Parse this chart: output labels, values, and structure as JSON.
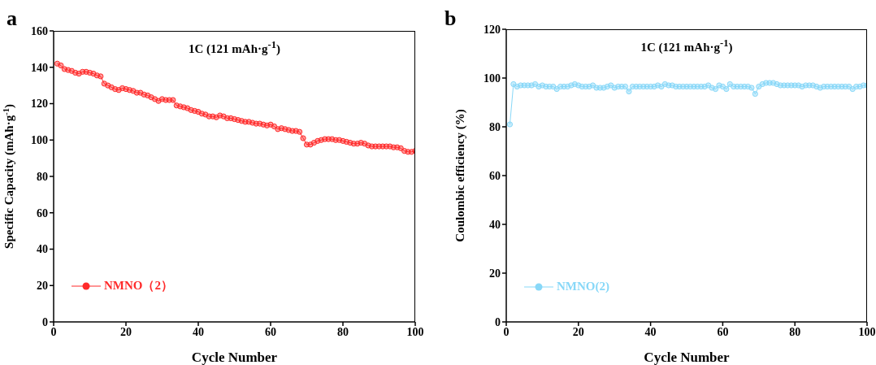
{
  "chart_data": [
    {
      "type": "line",
      "title": "1C (121 mAh·g$^{-1}$)",
      "xlabel": "Cycle Number",
      "ylabel": "Specific Capacity (mAh·g$^{-1}$)",
      "annotations": [
        "a"
      ],
      "xlim": [
        0,
        100
      ],
      "xticks": [
        0,
        20,
        40,
        60,
        80,
        100
      ],
      "ylim": [
        0,
        160
      ],
      "yticks": [
        0,
        20,
        40,
        60,
        80,
        100,
        120,
        140,
        160
      ],
      "grid": false,
      "legend": "bottom left",
      "marker": "circle",
      "line_style": "solid",
      "x": [
        1,
        2,
        3,
        4,
        5,
        6,
        7,
        8,
        9,
        10,
        11,
        12,
        13,
        14,
        15,
        16,
        17,
        18,
        19,
        20,
        21,
        22,
        23,
        24,
        25,
        26,
        27,
        28,
        29,
        30,
        31,
        32,
        33,
        34,
        35,
        36,
        37,
        38,
        39,
        40,
        41,
        42,
        43,
        44,
        45,
        46,
        47,
        48,
        49,
        50,
        51,
        52,
        53,
        54,
        55,
        56,
        57,
        58,
        59,
        60,
        61,
        62,
        63,
        64,
        65,
        66,
        67,
        68,
        69,
        70,
        71,
        72,
        73,
        74,
        75,
        76,
        77,
        78,
        79,
        80,
        81,
        82,
        83,
        84,
        85,
        86,
        87,
        88,
        89,
        90,
        91,
        92,
        93,
        94,
        95,
        96,
        97,
        98,
        99,
        100
      ],
      "series": [
        {
          "name": "NMNO（2）",
          "color": "#ff2a2a",
          "values": [
            142,
            141,
            139,
            138.5,
            138,
            137,
            136.5,
            137.5,
            137.5,
            137,
            136.5,
            135.5,
            135,
            131,
            130,
            129,
            128,
            127.5,
            128.5,
            128,
            127.5,
            127,
            126,
            126,
            125,
            124.5,
            123.5,
            122.5,
            121.5,
            122.5,
            122,
            122,
            122,
            119,
            118.5,
            118,
            117.5,
            116.5,
            116,
            115.5,
            114.5,
            114,
            113,
            113,
            112.5,
            113.5,
            113,
            112,
            112,
            111.5,
            111,
            110.5,
            110,
            110,
            109.5,
            109,
            109,
            108.5,
            108,
            108.5,
            107.5,
            106,
            106.5,
            106,
            105.5,
            105,
            105,
            104.5,
            101,
            97.5,
            97.5,
            98.5,
            99.5,
            100,
            100.5,
            100.5,
            100.5,
            100,
            100,
            99.5,
            99,
            98.5,
            98,
            98,
            98.5,
            98,
            97,
            96.5,
            96.5,
            96.5,
            96.5,
            96.5,
            96.5,
            96,
            96,
            95.5,
            94,
            93.5,
            93.5,
            94
          ]
        }
      ]
    },
    {
      "type": "line",
      "title": "1C (121 mAh·g$^{-1}$)",
      "xlabel": "Cycle Number",
      "ylabel": "Coulombic efficiency (%)",
      "annotations": [
        "b"
      ],
      "xlim": [
        0,
        100
      ],
      "xticks": [
        0,
        20,
        40,
        60,
        80,
        100
      ],
      "ylim": [
        0,
        120
      ],
      "yticks": [
        0,
        20,
        40,
        60,
        80,
        100,
        120
      ],
      "grid": false,
      "legend": "bottom left",
      "marker": "circle",
      "line_style": "solid",
      "x": [
        1,
        2,
        3,
        4,
        5,
        6,
        7,
        8,
        9,
        10,
        11,
        12,
        13,
        14,
        15,
        16,
        17,
        18,
        19,
        20,
        21,
        22,
        23,
        24,
        25,
        26,
        27,
        28,
        29,
        30,
        31,
        32,
        33,
        34,
        35,
        36,
        37,
        38,
        39,
        40,
        41,
        42,
        43,
        44,
        45,
        46,
        47,
        48,
        49,
        50,
        51,
        52,
        53,
        54,
        55,
        56,
        57,
        58,
        59,
        60,
        61,
        62,
        63,
        64,
        65,
        66,
        67,
        68,
        69,
        70,
        71,
        72,
        73,
        74,
        75,
        76,
        77,
        78,
        79,
        80,
        81,
        82,
        83,
        84,
        85,
        86,
        87,
        88,
        89,
        90,
        91,
        92,
        93,
        94,
        95,
        96,
        97,
        98,
        99,
        100
      ],
      "series": [
        {
          "name": "NMNO(2)",
          "color": "#88d8f8",
          "values": [
            81,
            97.5,
            96.5,
            97,
            97,
            97,
            97,
            97.5,
            96.5,
            97,
            96.5,
            96.5,
            96.5,
            95.5,
            96.5,
            96.5,
            96.5,
            97,
            97.5,
            97,
            96.5,
            96.5,
            96.5,
            97,
            96,
            96,
            96,
            96.5,
            97,
            96,
            96.5,
            96.5,
            96.5,
            94.5,
            96.5,
            96.5,
            96.5,
            96.5,
            96.5,
            96.5,
            96.5,
            97,
            96.5,
            97.5,
            97,
            97,
            96.5,
            96.5,
            96.5,
            96.5,
            96.5,
            96.5,
            96.5,
            96.5,
            96.5,
            97,
            96,
            95.5,
            97,
            96.5,
            95.5,
            97.5,
            96.5,
            96.5,
            96.5,
            96.5,
            96.5,
            96,
            93.5,
            96.5,
            97.5,
            98,
            98,
            98,
            97.5,
            97,
            97,
            97,
            97,
            97,
            97,
            96.5,
            97,
            97,
            97,
            96.5,
            96,
            96.5,
            96.5,
            96.5,
            96.5,
            96.5,
            96.5,
            96.5,
            96.5,
            95.5,
            96.5,
            96.5,
            97,
            97
          ]
        }
      ]
    }
  ]
}
